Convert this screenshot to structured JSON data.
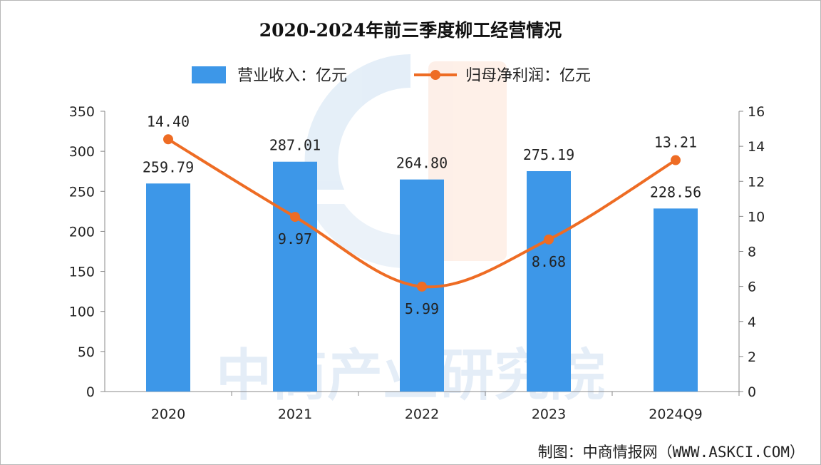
{
  "chart_data": {
    "type": "bar",
    "title": "2020-2024年前三季度柳工经营情况",
    "categories": [
      "2020",
      "2021",
      "2022",
      "2023",
      "2024Q9"
    ],
    "series": [
      {
        "name": "营业收入：亿元",
        "type": "bar",
        "axis": "left",
        "color": "#3d97e8",
        "values": [
          259.79,
          287.01,
          264.8,
          275.19,
          228.56
        ],
        "labels": [
          "259.79",
          "287.01",
          "264.80",
          "275.19",
          "228.56"
        ]
      },
      {
        "name": "归母净利润：亿元",
        "type": "line",
        "axis": "right",
        "color": "#ee6c24",
        "values": [
          14.4,
          9.97,
          5.99,
          8.68,
          13.21
        ],
        "labels": [
          "14.40",
          "9.97",
          "5.99",
          "8.68",
          "13.21"
        ]
      }
    ],
    "y_left": {
      "min": 0,
      "max": 350,
      "ticks": [
        0,
        50,
        100,
        150,
        200,
        250,
        300,
        350
      ]
    },
    "y_right": {
      "min": 0,
      "max": 16,
      "ticks": [
        0,
        2,
        4,
        6,
        8,
        10,
        12,
        14,
        16
      ]
    },
    "legend_position": "top-center",
    "grid": false
  },
  "watermark": {
    "text": "中商产业研究院"
  },
  "source": "制图：中商情报网（WWW.ASKCI.COM）"
}
